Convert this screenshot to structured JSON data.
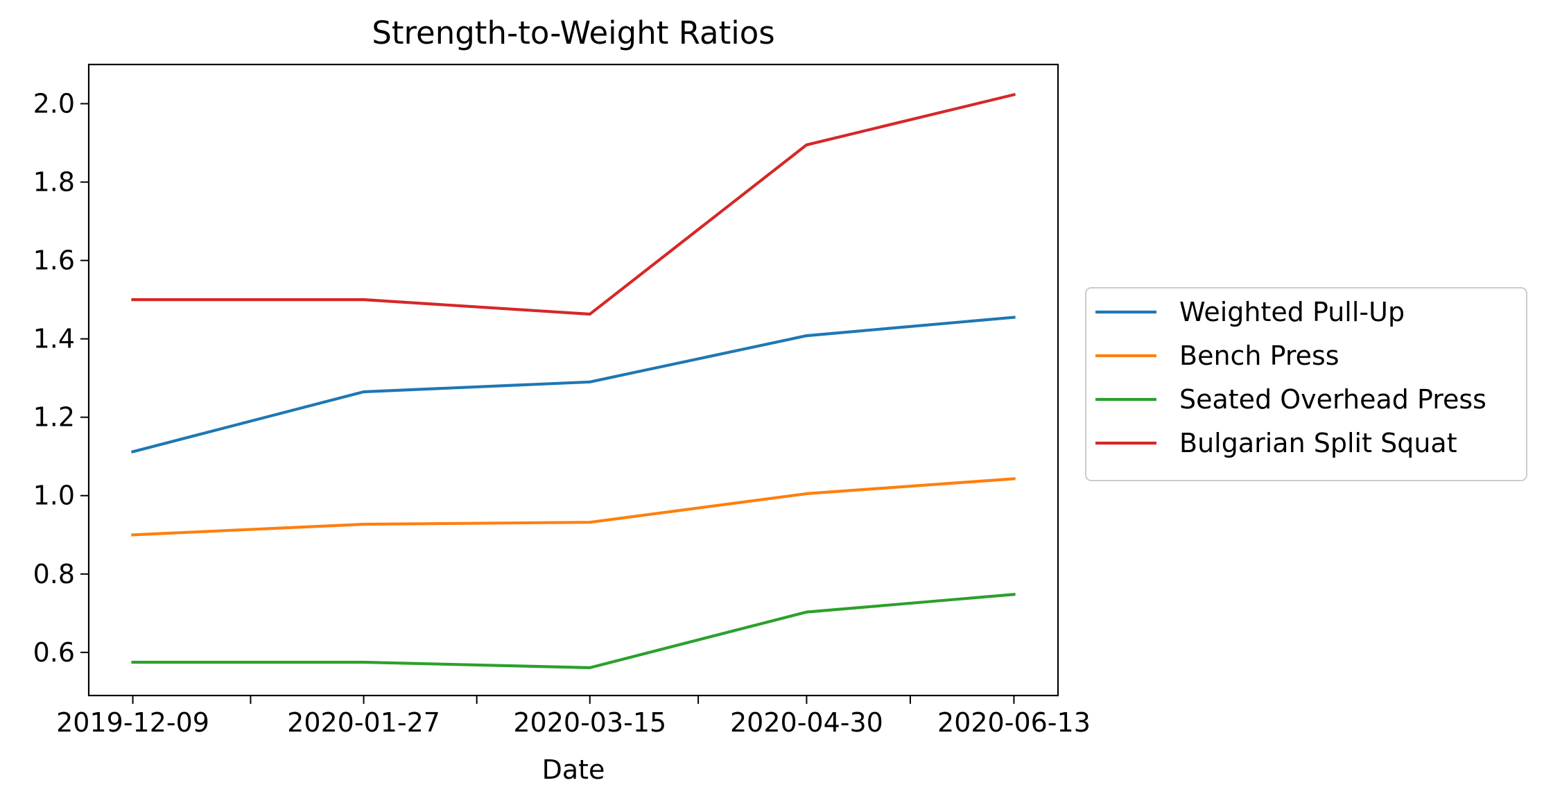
{
  "chart_data": {
    "type": "line",
    "title": "Strength-to-Weight Ratios",
    "xlabel": "Date",
    "ylabel": "",
    "x": [
      "2019-12-09",
      "2020-01-27",
      "2020-03-15",
      "2020-04-30",
      "2020-06-13"
    ],
    "x_minor_ticks": [
      "2020-01-03",
      "2020-02-20",
      "2020-04-07",
      "2020-05-22"
    ],
    "ylim": [
      0.49,
      2.1
    ],
    "yticks": [
      0.6,
      0.8,
      1.0,
      1.2,
      1.4,
      1.6,
      1.8,
      2.0
    ],
    "grid": false,
    "legend_position": "outside-right",
    "series": [
      {
        "name": "Weighted Pull-Up",
        "color": "#1f77b4",
        "values": [
          1.112,
          1.265,
          1.29,
          1.408,
          1.455
        ]
      },
      {
        "name": "Bench Press",
        "color": "#ff7f0e",
        "values": [
          0.9,
          0.927,
          0.932,
          1.005,
          1.043
        ]
      },
      {
        "name": "Seated Overhead Press",
        "color": "#2ca02c",
        "values": [
          0.575,
          0.575,
          0.561,
          0.703,
          0.748
        ]
      },
      {
        "name": "Bulgarian Split Squat",
        "color": "#d62728",
        "values": [
          1.5,
          1.5,
          1.463,
          1.895,
          2.023
        ]
      }
    ]
  }
}
